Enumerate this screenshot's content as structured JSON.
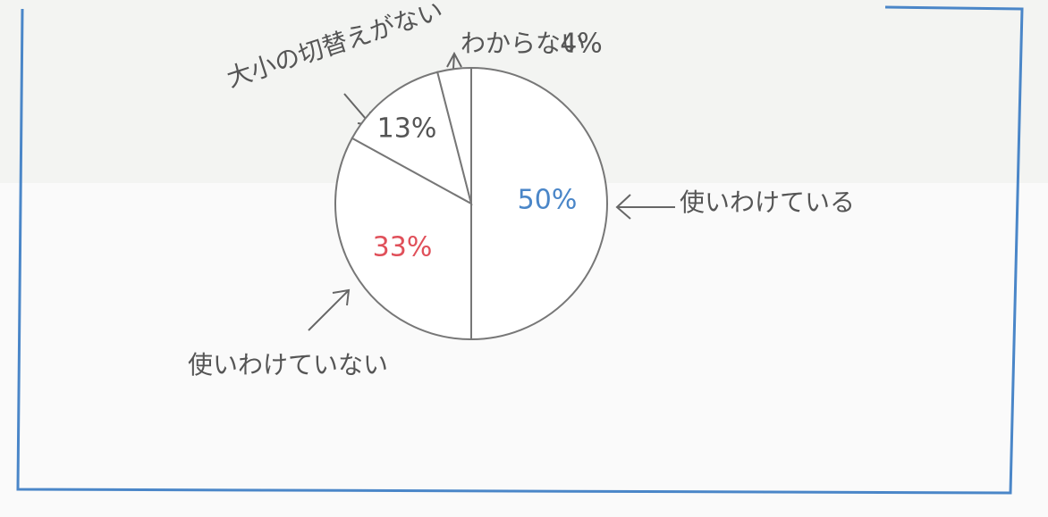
{
  "chart_data": {
    "type": "pie",
    "categories": [
      "使いわけている",
      "使いわけていない",
      "大小の切替えがない",
      "わからない"
    ],
    "values": [
      50,
      33,
      13,
      4
    ],
    "value_labels": [
      "50%",
      "33%",
      "13%",
      "4%"
    ],
    "label_colors": [
      "#4a86c8",
      "#e0505a",
      "#555555",
      "#555555"
    ],
    "color": "#ffffff"
  }
}
